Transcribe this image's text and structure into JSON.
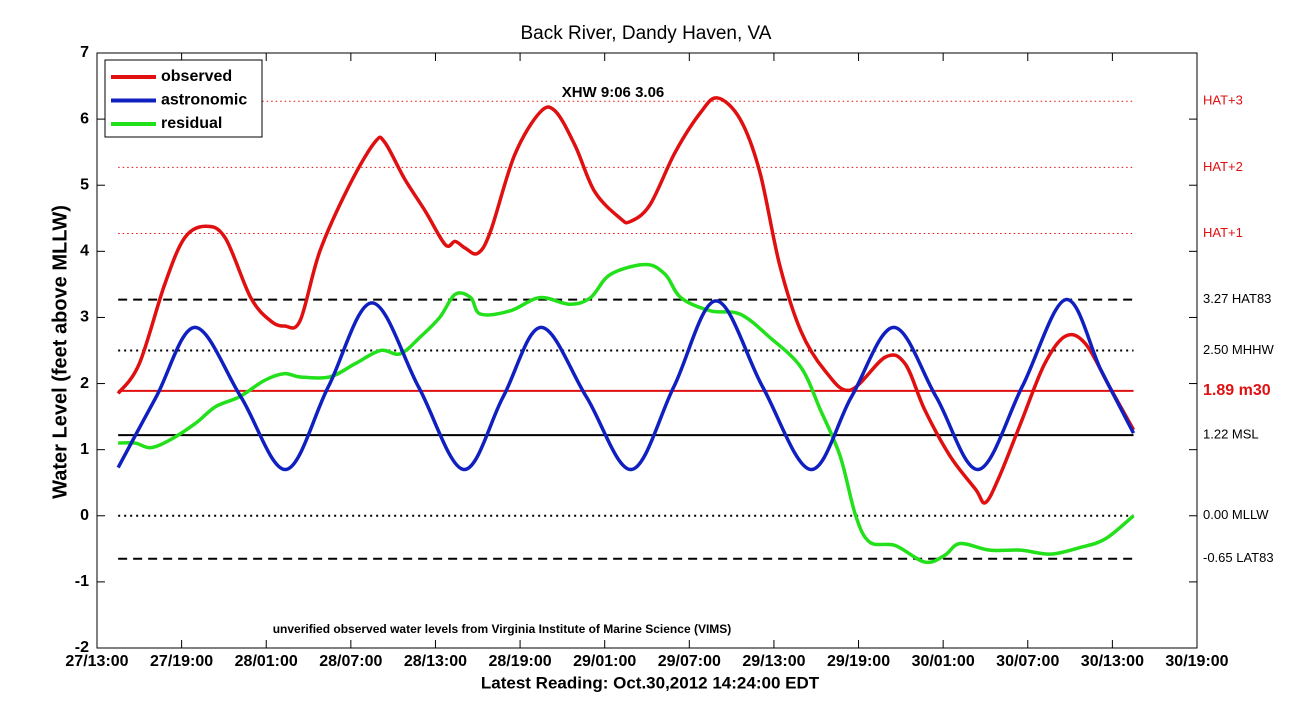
{
  "chart_data": {
    "type": "line",
    "title": "Back River, Dandy Haven, VA",
    "xlabel": "Latest Reading: Oct.30,2012 14:24:00 EDT",
    "ylabel": "Water Level (feet above MLLW)",
    "xlim": [
      0,
      78
    ],
    "xticks": [
      {
        "value": 0,
        "label": "27/13:00"
      },
      {
        "value": 6,
        "label": "27/19:00"
      },
      {
        "value": 12,
        "label": "28/01:00"
      },
      {
        "value": 18,
        "label": "28/07:00"
      },
      {
        "value": 24,
        "label": "28/13:00"
      },
      {
        "value": 30,
        "label": "28/19:00"
      },
      {
        "value": 36,
        "label": "29/01:00"
      },
      {
        "value": 42,
        "label": "29/07:00"
      },
      {
        "value": 48,
        "label": "29/13:00"
      },
      {
        "value": 54,
        "label": "29/19:00"
      },
      {
        "value": 60,
        "label": "30/01:00"
      },
      {
        "value": 66,
        "label": "30/07:00"
      },
      {
        "value": 72,
        "label": "30/13:00"
      },
      {
        "value": 78,
        "label": "30/19:00"
      }
    ],
    "ylim": [
      -2,
      7
    ],
    "yticks": [
      -2,
      -1,
      0,
      1,
      2,
      3,
      4,
      5,
      6,
      7
    ],
    "legend": "top-left",
    "series": [
      {
        "name": "observed",
        "color": "#e01010",
        "x": [
          1.5,
          3.0,
          4.8,
          6.2,
          7.7,
          9.1,
          10.9,
          12.3,
          13.3,
          14.4,
          15.8,
          17.9,
          19.7,
          20.4,
          21.8,
          23.3,
          24.7,
          25.4,
          26.1,
          27.0,
          27.9,
          29.6,
          31.4,
          32.5,
          33.9,
          35.3,
          37.1,
          37.8,
          39.2,
          41.0,
          42.8,
          44.0,
          45.6,
          47.0,
          48.4,
          49.9,
          51.6,
          53.4,
          55.9,
          57.3,
          58.7,
          60.5,
          62.3,
          63.0,
          64.0,
          65.5,
          67.2,
          68.7,
          70.1,
          71.8,
          73.5
        ],
        "values": [
          1.85,
          2.3,
          3.5,
          4.2,
          4.38,
          4.2,
          3.3,
          2.95,
          2.87,
          2.95,
          4.0,
          5.0,
          5.65,
          5.65,
          5.1,
          4.6,
          4.1,
          4.15,
          4.05,
          3.97,
          4.3,
          5.45,
          6.1,
          6.12,
          5.6,
          4.9,
          4.5,
          4.45,
          4.7,
          5.5,
          6.1,
          6.32,
          6.0,
          5.2,
          3.8,
          2.8,
          2.2,
          1.9,
          2.4,
          2.3,
          1.6,
          0.9,
          0.4,
          0.2,
          0.6,
          1.4,
          2.3,
          2.72,
          2.6,
          1.95,
          1.3
        ]
      },
      {
        "name": "astronomic",
        "color": "#1020c0",
        "x": [
          1.5,
          4.2,
          6.95,
          10.2,
          13.4,
          16.4,
          19.5,
          22.8,
          26.0,
          28.8,
          31.5,
          34.7,
          37.9,
          40.9,
          43.9,
          47.2,
          50.6,
          53.5,
          56.5,
          59.5,
          62.5,
          65.6,
          68.7,
          71.2,
          73.5
        ],
        "values": [
          0.73,
          1.8,
          2.85,
          1.8,
          0.7,
          1.95,
          3.22,
          1.95,
          0.7,
          1.8,
          2.85,
          1.8,
          0.7,
          1.95,
          3.25,
          1.95,
          0.7,
          1.8,
          2.85,
          1.8,
          0.7,
          1.95,
          3.27,
          2.2,
          1.25
        ]
      },
      {
        "name": "residual",
        "color": "#22e01a",
        "x": [
          1.5,
          2.7,
          3.8,
          5.2,
          7.0,
          8.4,
          10.1,
          11.9,
          13.3,
          14.4,
          16.5,
          18.3,
          20.1,
          21.5,
          22.9,
          24.3,
          25.4,
          26.5,
          27.2,
          29.3,
          31.4,
          33.5,
          35.0,
          36.4,
          38.9,
          40.3,
          41.4,
          43.5,
          45.6,
          47.7,
          49.9,
          51.3,
          52.7,
          53.8,
          54.8,
          56.6,
          58.7,
          60.1,
          61.2,
          63.3,
          65.5,
          67.6,
          69.7,
          71.5,
          73.5
        ],
        "values": [
          1.1,
          1.1,
          1.03,
          1.15,
          1.4,
          1.65,
          1.8,
          2.05,
          2.15,
          2.1,
          2.1,
          2.3,
          2.5,
          2.45,
          2.7,
          3.0,
          3.35,
          3.3,
          3.05,
          3.1,
          3.3,
          3.2,
          3.3,
          3.65,
          3.8,
          3.65,
          3.3,
          3.1,
          3.05,
          2.7,
          2.25,
          1.6,
          0.9,
          0.0,
          -0.4,
          -0.45,
          -0.7,
          -0.6,
          -0.42,
          -0.52,
          -0.52,
          -0.58,
          -0.48,
          -0.35,
          0.0
        ]
      }
    ],
    "reference_lines": [
      {
        "value": 6.27,
        "label": "HAT+3",
        "color": "#e01010",
        "style": "dotted-fine"
      },
      {
        "value": 5.27,
        "label": "HAT+2",
        "color": "#e01010",
        "style": "dotted-fine"
      },
      {
        "value": 4.27,
        "label": "HAT+1",
        "color": "#e01010",
        "style": "dotted-fine"
      },
      {
        "value": 3.27,
        "label": "3.27 HAT83",
        "color": "#000000",
        "style": "dashed"
      },
      {
        "value": 2.5,
        "label": "2.50 MHHW",
        "color": "#000000",
        "style": "dotted"
      },
      {
        "value": 1.89,
        "label": "1.89 m30",
        "color": "#e01010",
        "style": "solid",
        "bold": true
      },
      {
        "value": 1.22,
        "label": "1.22 MSL",
        "color": "#000000",
        "style": "solid"
      },
      {
        "value": 0.0,
        "label": "0.00 MLLW",
        "color": "#000000",
        "style": "dotted"
      },
      {
        "value": -0.65,
        "label": "-0.65 LAT83",
        "color": "#000000",
        "style": "dashed"
      }
    ],
    "annotations": [
      "XHW 9:06 3.06",
      "unverified observed water levels from Virginia Institute of Marine Science (VIMS)"
    ]
  }
}
